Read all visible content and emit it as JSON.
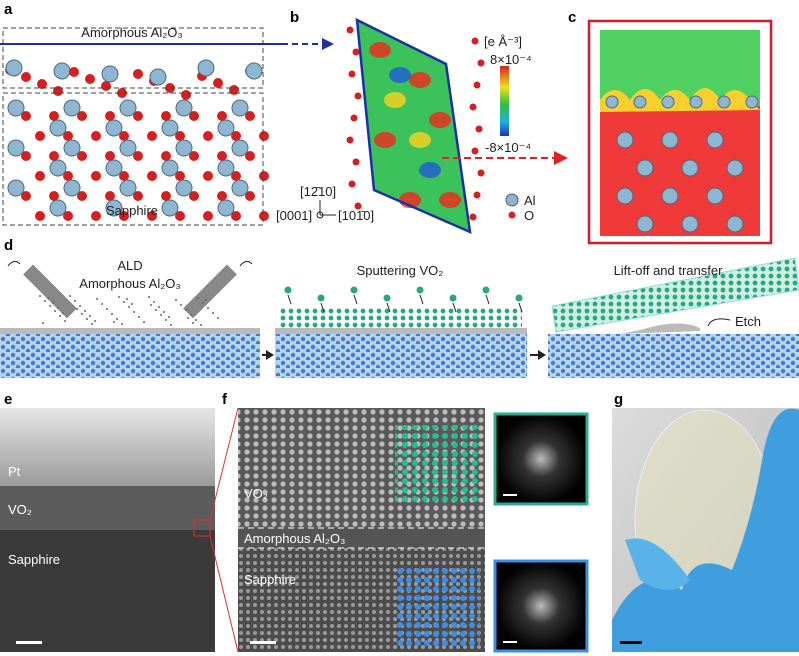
{
  "panels": {
    "a": {
      "letter": "a",
      "top_label": "Amorphous Al₂O₃",
      "bottom_label": "Sapphire"
    },
    "b": {
      "letter": "b",
      "colorbar_unit": "[e Å⁻³]",
      "colorbar_max": "8×10⁻⁴",
      "colorbar_min": "-8×10⁻⁴",
      "axis_up": "[12̄10]",
      "axis_out": "[0001]",
      "axis_right": "[101̄0]",
      "legend": [
        "Al",
        "O"
      ]
    },
    "c": {
      "letter": "c"
    },
    "d": {
      "letter": "d",
      "step1_title": "ALD",
      "step1_subtitle": "Amorphous Al₂O₃",
      "step2_title": "Sputtering VO₂",
      "step3_title": "Lift-off and transfer",
      "etch_label": "Etch"
    },
    "e": {
      "letter": "e",
      "layers": [
        "Pt",
        "VO₂",
        "Sapphire"
      ]
    },
    "f": {
      "letter": "f",
      "layers": [
        "VO₂",
        "Amorphous Al₂O₃",
        "Sapphire"
      ]
    },
    "g": {
      "letter": "g"
    }
  }
}
